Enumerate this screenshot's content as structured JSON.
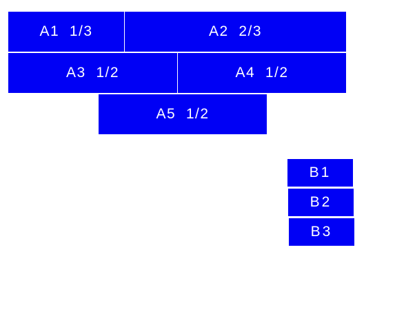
{
  "colors": {
    "box": "#0000f5",
    "text": "#ffffff"
  },
  "group_a": [
    {
      "label": "A1  1/3"
    },
    {
      "label": "A2  2/3"
    },
    {
      "label": "A3  1/2"
    },
    {
      "label": "A4  1/2"
    },
    {
      "label": "A5  1/2"
    }
  ],
  "group_b": [
    {
      "label": "B1"
    },
    {
      "label": "B2"
    },
    {
      "label": "B3"
    }
  ]
}
